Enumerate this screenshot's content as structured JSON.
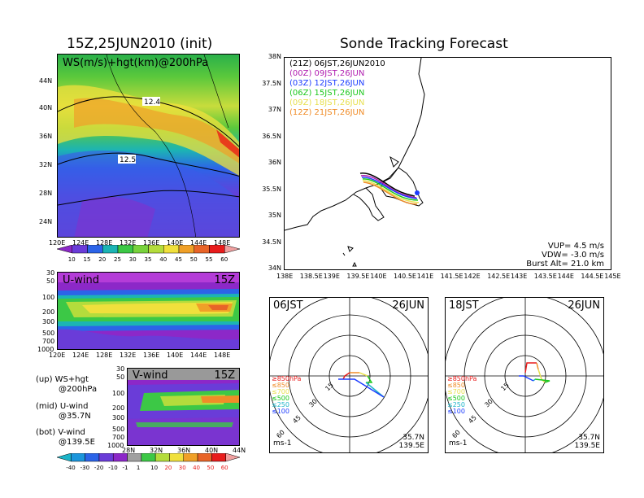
{
  "left_title": "15Z,25JUN2010 (init)",
  "right_title": "Sonde Tracking Forecast",
  "ws_panel": {
    "label": "WS(m/s)+hgt(km)@200hPa",
    "lat_ticks": [
      "44N",
      "40N",
      "36N",
      "32N",
      "28N",
      "24N"
    ],
    "lon_ticks": [
      "120E",
      "124E",
      "128E",
      "132E",
      "136E",
      "140E",
      "144E",
      "148E"
    ],
    "contour_labels": [
      "12.4",
      "12.5"
    ]
  },
  "ws_colorbar": [
    "10",
    "15",
    "20",
    "25",
    "30",
    "35",
    "40",
    "45",
    "50",
    "55",
    "60"
  ],
  "u_panel": {
    "label": "U-wind",
    "time": "15Z",
    "p_ticks": [
      "30",
      "50",
      "100",
      "200",
      "300",
      "500",
      "700",
      "1000"
    ],
    "lon_ticks": [
      "120E",
      "124E",
      "128E",
      "132E",
      "136E",
      "140E",
      "144E",
      "148E"
    ]
  },
  "v_panel": {
    "label": "V-wind",
    "time": "15Z",
    "p_ticks": [
      "30",
      "50",
      "100",
      "200",
      "300",
      "500",
      "700",
      "1000"
    ],
    "lat_ticks": [
      "28N",
      "32N",
      "36N",
      "40N",
      "44N"
    ]
  },
  "uv_colorbar": [
    "-40",
    "-30",
    "-20",
    "-10",
    "-1",
    "1",
    "10",
    "20",
    "30",
    "40",
    "50",
    "60"
  ],
  "notes": {
    "up_1": "(up) WS+hgt",
    "up_2": "@200hPa",
    "mid_1": "(mid) U-wind",
    "mid_2": "@35.7N",
    "bot_1": "(bot) V-wind",
    "bot_2": "@139.5E"
  },
  "track_map": {
    "lat_ticks": [
      "38N",
      "37.5N",
      "37N",
      "36.5N",
      "36N",
      "35.5N",
      "35N",
      "34.5N",
      "34N"
    ],
    "lon_ticks": [
      "138E",
      "138.5E",
      "139E",
      "139.5E",
      "140E",
      "140.5E",
      "141E",
      "141.5E",
      "142E",
      "142.5E",
      "143E",
      "143.5E",
      "144E",
      "144.5E",
      "145E"
    ],
    "legend": [
      {
        "label": "(21Z) 06JST,26JUN2010",
        "color": "#000000"
      },
      {
        "label": "(00Z) 09JST,26JUN",
        "color": "#b01cb0"
      },
      {
        "label": "(03Z) 12JST,26JUN",
        "color": "#1c3cff"
      },
      {
        "label": "(06Z) 15JST,26JUN",
        "color": "#1cc81c"
      },
      {
        "label": "(09Z) 18JST,26JUN",
        "color": "#e8e050"
      },
      {
        "label": "(12Z) 21JST,26JUN",
        "color": "#f08c28"
      }
    ],
    "vup": "VUP= 4.5 m/s",
    "vdw": "VDW= -3.0 m/s",
    "burst": "Burst Alt= 21.0 km"
  },
  "hodo_left": {
    "time": "06JST",
    "date": "26JUN",
    "ring_labels": [
      "15",
      "30",
      "45",
      "60"
    ],
    "levels": [
      {
        "label": "≥850hPa",
        "color": "#e81c1c"
      },
      {
        "label": "≤850",
        "color": "#f08c28"
      },
      {
        "label": "≤700",
        "color": "#e8e050"
      },
      {
        "label": "≤500",
        "color": "#1cc81c"
      },
      {
        "label": "≤250",
        "color": "#1cb4c8"
      },
      {
        "label": "≤100",
        "color": "#1c3cff"
      }
    ],
    "units": "ms-1",
    "lat": "35.7N",
    "lon": "139.5E"
  },
  "hodo_right": {
    "time": "18JST",
    "date": "26JUN",
    "ring_labels": [
      "15",
      "30",
      "45",
      "60"
    ],
    "levels": [
      {
        "label": "≥850hPa",
        "color": "#e81c1c"
      },
      {
        "label": "≤850",
        "color": "#f08c28"
      },
      {
        "label": "≤700",
        "color": "#e8e050"
      },
      {
        "label": "≤500",
        "color": "#1cc81c"
      },
      {
        "label": "≤250",
        "color": "#1cb4c8"
      },
      {
        "label": "≤100",
        "color": "#1c3cff"
      }
    ],
    "units": "ms-1",
    "lat": "35.7N",
    "lon": "139.5E"
  }
}
